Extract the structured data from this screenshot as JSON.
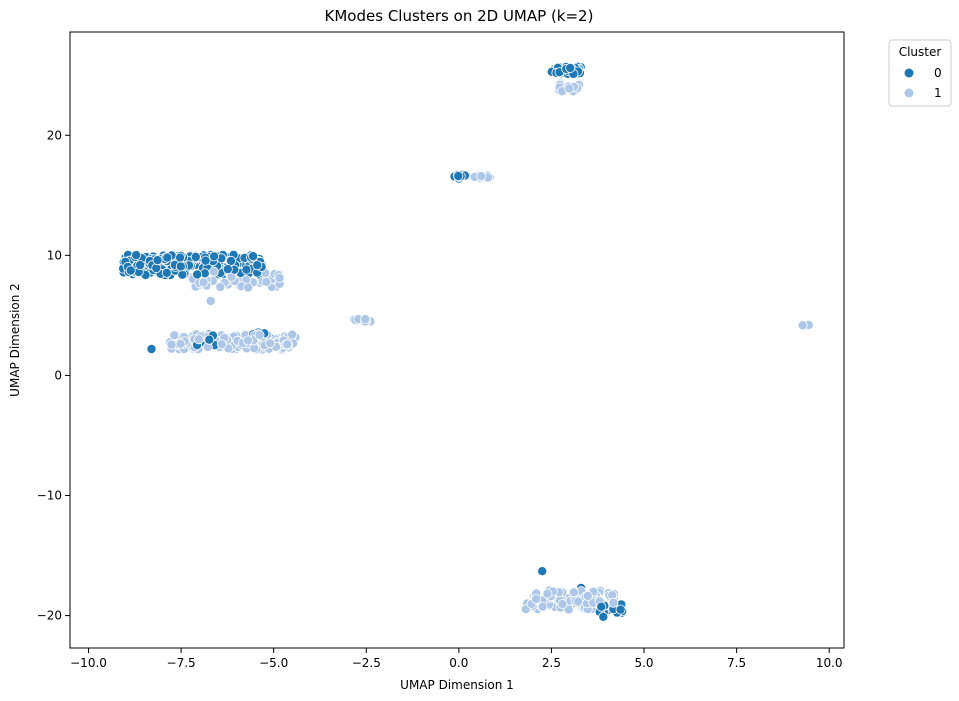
{
  "chart_data": {
    "type": "scatter",
    "title": "KModes Clusters on 2D UMAP (k=2)",
    "xlabel": "UMAP Dimension 1",
    "ylabel": "UMAP Dimension 2",
    "xlim": [
      -10.5,
      10.4
    ],
    "ylim": [
      -22.7,
      28.6
    ],
    "xticks": [
      -10.0,
      -7.5,
      -5.0,
      -2.5,
      0.0,
      2.5,
      5.0,
      7.5,
      10.0
    ],
    "xtick_labels": [
      "−10.0",
      "−7.5",
      "−5.0",
      "−2.5",
      "0.0",
      "2.5",
      "5.0",
      "7.5",
      "10.0"
    ],
    "yticks": [
      -20,
      -10,
      0,
      10,
      20
    ],
    "ytick_labels": [
      "−20",
      "−10",
      "0",
      "10",
      "20"
    ],
    "grid": false,
    "legend": {
      "title": "Cluster",
      "placement": "upper-right-outside"
    },
    "series": [
      {
        "name": "0",
        "color": "#1f77b4",
        "clusters": [
          {
            "cx": -7.2,
            "cy": 9.2,
            "sx": 3.8,
            "sy": 1.7,
            "n": 230
          },
          {
            "cx": -7.0,
            "cy": 3.0,
            "sx": 1.2,
            "sy": 1.0,
            "n": 22
          },
          {
            "cx": -5.3,
            "cy": 3.2,
            "sx": 0.6,
            "sy": 0.8,
            "n": 8
          },
          {
            "cx": 2.9,
            "cy": 25.4,
            "sx": 0.8,
            "sy": 0.6,
            "n": 40
          },
          {
            "cx": 0.0,
            "cy": 16.6,
            "sx": 0.4,
            "sy": 0.2,
            "n": 12
          },
          {
            "cx": 4.1,
            "cy": -19.4,
            "sx": 0.7,
            "sy": 0.8,
            "n": 30
          }
        ],
        "points": [
          [
            2.25,
            -16.3
          ],
          [
            -8.3,
            2.2
          ],
          [
            3.3,
            -17.7
          ],
          [
            3.9,
            -20.1
          ],
          [
            0.0,
            16.4
          ]
        ]
      },
      {
        "name": "1",
        "color": "#aec7e8",
        "clusters": [
          {
            "cx": -6.1,
            "cy": 2.8,
            "sx": 3.4,
            "sy": 1.3,
            "n": 200
          },
          {
            "cx": -6.0,
            "cy": 8.0,
            "sx": 2.5,
            "sy": 1.4,
            "n": 45
          },
          {
            "cx": -2.6,
            "cy": 4.6,
            "sx": 0.55,
            "sy": 0.2,
            "n": 14
          },
          {
            "cx": 0.6,
            "cy": 16.55,
            "sx": 0.55,
            "sy": 0.2,
            "n": 12
          },
          {
            "cx": 3.0,
            "cy": 24.0,
            "sx": 0.6,
            "sy": 0.7,
            "n": 25
          },
          {
            "cx": 3.0,
            "cy": -18.7,
            "sx": 2.4,
            "sy": 1.6,
            "n": 110
          },
          {
            "cx": 9.35,
            "cy": 4.15,
            "sx": 0.2,
            "sy": 0.1,
            "n": 3
          }
        ],
        "points": [
          [
            -6.7,
            6.2
          ],
          [
            9.3,
            4.1
          ],
          [
            9.45,
            4.2
          ]
        ]
      }
    ]
  }
}
